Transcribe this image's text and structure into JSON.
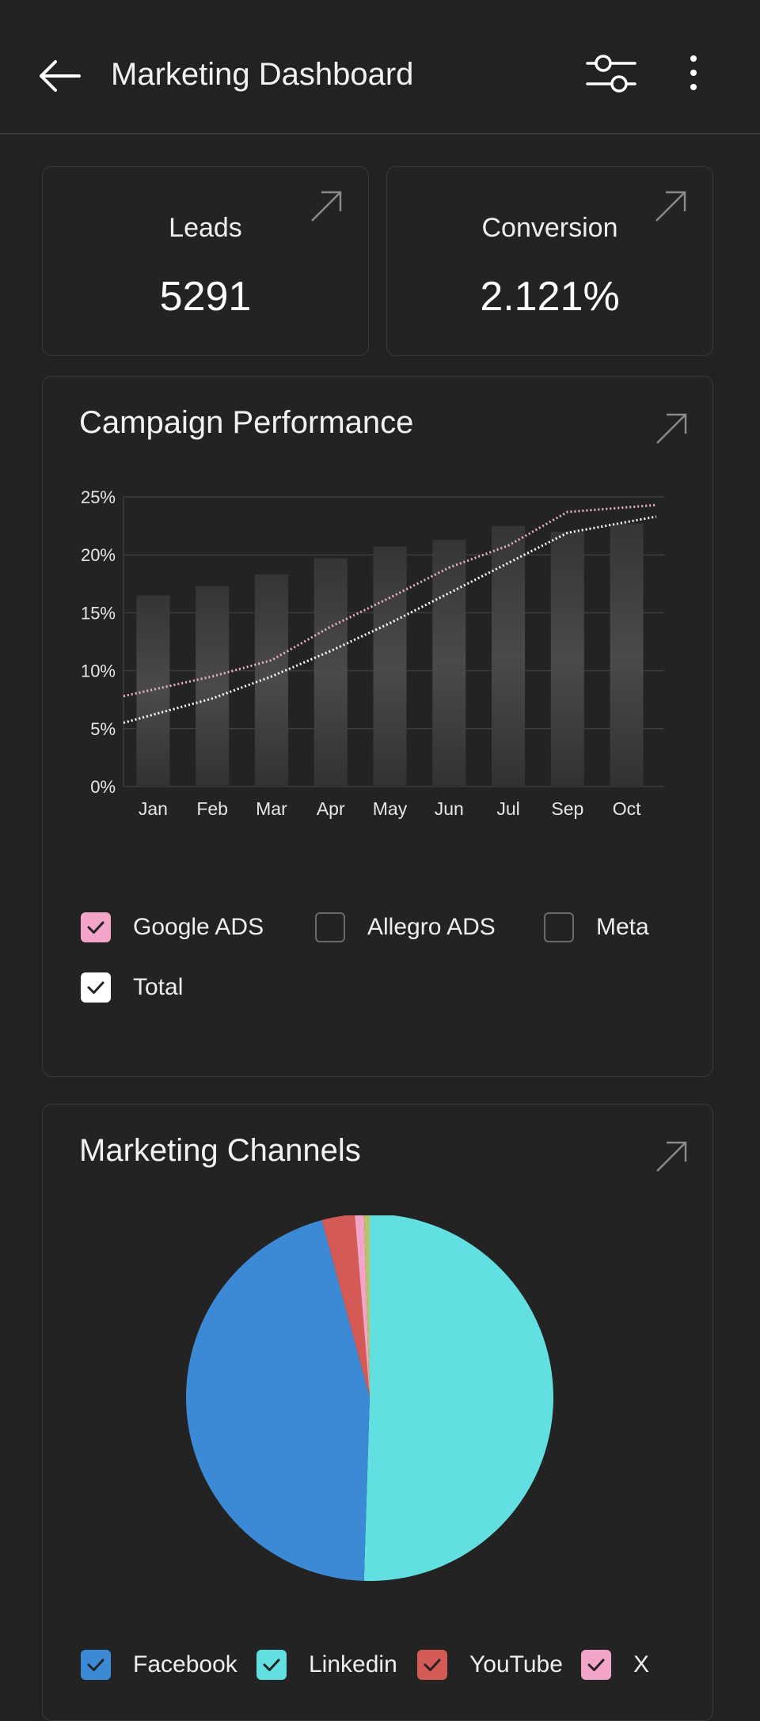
{
  "header": {
    "title": "Marketing Dashboard",
    "back_icon": "arrow-left-icon",
    "filter_icon": "sliders-icon",
    "more_icon": "more-vertical-icon"
  },
  "stats": [
    {
      "label": "Leads",
      "value": "5291"
    },
    {
      "label": "Conversion",
      "value": "2.121%"
    }
  ],
  "campaign": {
    "title": "Campaign Performance",
    "legend": [
      {
        "label": "Google ADS",
        "checked": true,
        "color": "#f3a4c9"
      },
      {
        "label": "Allegro ADS",
        "checked": false,
        "color": "#222222"
      },
      {
        "label": "Meta",
        "checked": false,
        "color": "#222222"
      },
      {
        "label": "Total",
        "checked": true,
        "color": "#ffffff"
      }
    ]
  },
  "channels": {
    "title": "Marketing Channels",
    "legend": [
      {
        "label": "Facebook",
        "checked": true,
        "color": "#3c8ad6"
      },
      {
        "label": "Linkedin",
        "checked": true,
        "color": "#62dfe1"
      },
      {
        "label": "YouTube",
        "checked": true,
        "color": "#d45a55"
      },
      {
        "label": "X",
        "checked": true,
        "color": "#f3a4c9"
      }
    ]
  },
  "chart_data": [
    {
      "type": "bar",
      "categories": [
        "Jan",
        "Feb",
        "Mar",
        "Apr",
        "May",
        "Jun",
        "Jul",
        "Sep",
        "Oct"
      ],
      "yticks": [
        "0%",
        "5%",
        "10%",
        "15%",
        "20%",
        "25%"
      ],
      "ylim": [
        0,
        25
      ],
      "grid": true,
      "series": [
        {
          "values": [
            16.5,
            17.3,
            18.3,
            19.7,
            20.7,
            21.3,
            22.5,
            22.0,
            22.7
          ],
          "kind": "bar",
          "color": "#3a3a3a"
        },
        {
          "name": "Google ADS",
          "values": [
            7.8,
            9.5,
            10.9,
            13.8,
            16.3,
            18.9,
            20.8,
            23.7,
            24.3
          ],
          "kind": "line",
          "color": "#e8b2c4"
        },
        {
          "name": "Total",
          "values": [
            5.5,
            7.6,
            9.5,
            11.7,
            14.1,
            16.7,
            19.3,
            21.9,
            23.3
          ],
          "kind": "line",
          "color": "#ffffff"
        }
      ]
    },
    {
      "type": "pie",
      "slices": [
        {
          "label": "Linkedin",
          "value": 50.5,
          "color": "#62dfe1"
        },
        {
          "label": "Facebook",
          "value": 45.3,
          "color": "#3c8ad6"
        },
        {
          "label": "YouTube",
          "value": 2.9,
          "color": "#d45a55"
        },
        {
          "label": "X",
          "value": 0.8,
          "color": "#f3a4c9"
        },
        {
          "value": 0.5,
          "color": "#b9c46a"
        }
      ]
    }
  ]
}
